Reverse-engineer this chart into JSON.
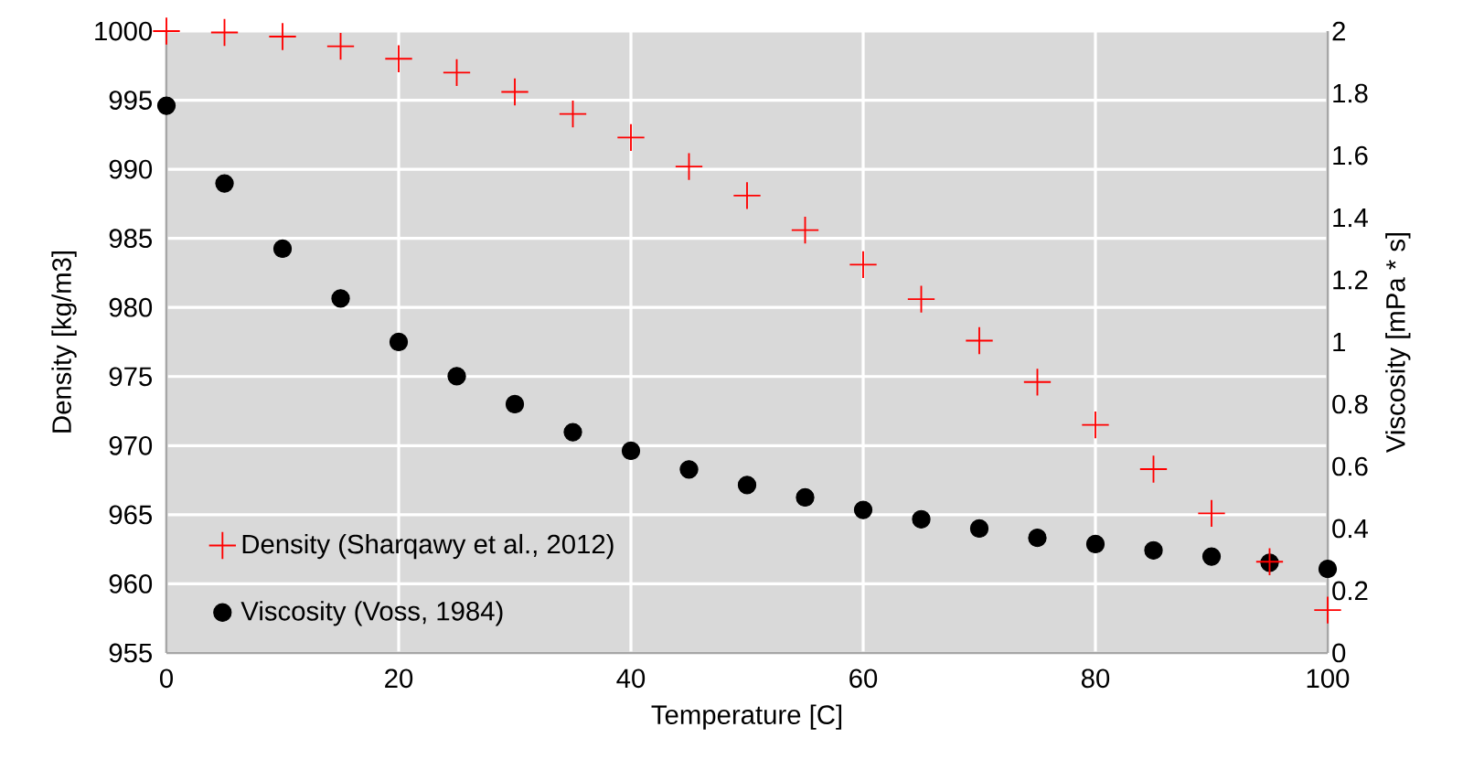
{
  "chart_data": {
    "type": "scatter",
    "xlabel": "Temperature  [C]",
    "ylabel": "Density [kg/m3]",
    "y2label": "Viscosity [mPa * s]",
    "x": [
      0,
      5,
      10,
      15,
      20,
      25,
      30,
      35,
      40,
      45,
      50,
      55,
      60,
      65,
      70,
      75,
      80,
      85,
      90,
      95,
      100
    ],
    "series": [
      {
        "name": "Density (Sharqawy et al., 2012)",
        "color": "#ff0000",
        "marker": "cross",
        "values": [
          1000.0,
          999.9,
          999.6,
          998.9,
          998.0,
          997.0,
          995.6,
          994.0,
          992.3,
          990.2,
          988.1,
          985.6,
          983.1,
          980.6,
          977.6,
          974.6,
          971.5,
          968.3,
          965.1,
          961.6,
          958.1
        ]
      },
      {
        "name": "Viscosity (Voss, 1984)",
        "color": "#000000",
        "marker": "circle",
        "axis": "y2",
        "values": [
          1.76,
          1.51,
          1.3,
          1.14,
          1.0,
          0.89,
          0.8,
          0.71,
          0.65,
          0.59,
          0.54,
          0.5,
          0.46,
          0.43,
          0.4,
          0.37,
          0.35,
          0.33,
          0.31,
          0.29,
          0.27
        ]
      }
    ],
    "xlim": [
      0,
      100
    ],
    "xticks": [
      0,
      20,
      40,
      60,
      80,
      100
    ],
    "ylim": [
      955,
      1000
    ],
    "yticks": [
      955,
      960,
      965,
      970,
      975,
      980,
      985,
      990,
      995,
      1000
    ],
    "y2lim": [
      0,
      2
    ],
    "y2ticks": [
      0,
      0.2,
      0.4,
      0.6,
      0.8,
      1,
      1.2,
      1.4,
      1.6,
      1.8,
      2
    ],
    "grid": true,
    "legend": "bottom left"
  }
}
